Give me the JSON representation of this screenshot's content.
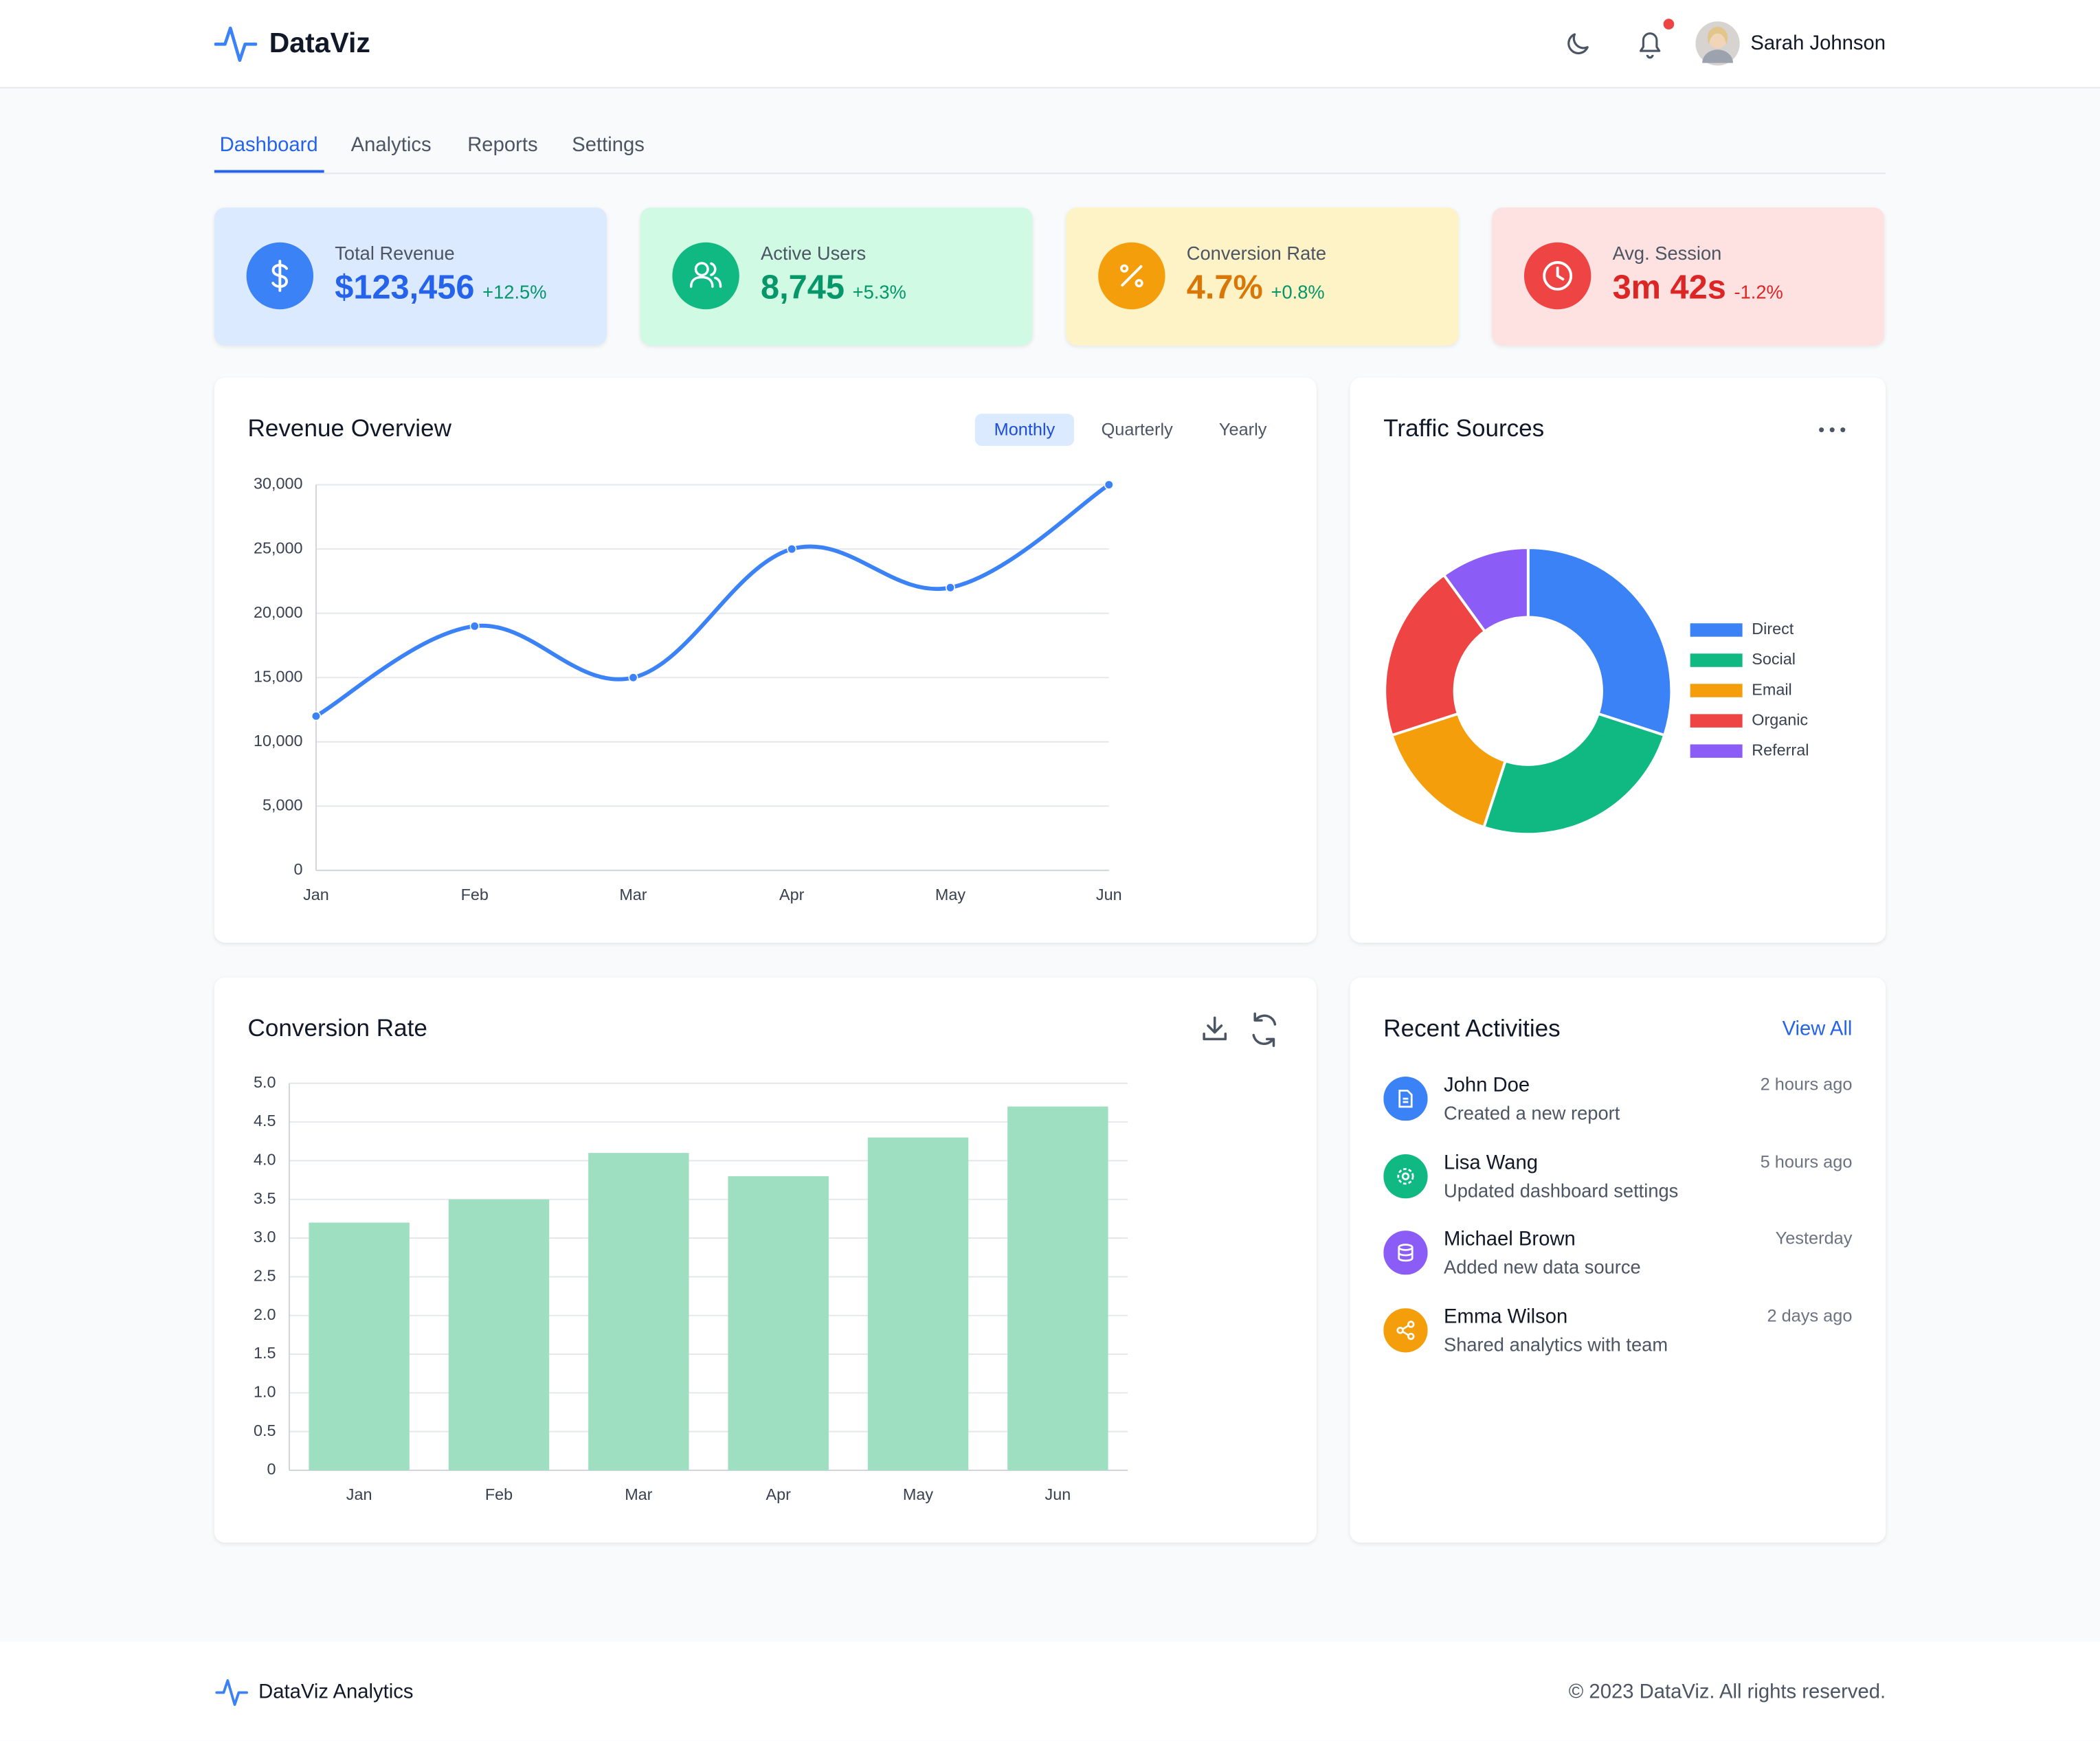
{
  "header": {
    "brand": "DataViz",
    "user": "Sarah Johnson"
  },
  "tabs": [
    "Dashboard",
    "Analytics",
    "Reports",
    "Settings"
  ],
  "stats": [
    {
      "label": "Total Revenue",
      "value": "$123,456",
      "change": "+12.5%"
    },
    {
      "label": "Active Users",
      "value": "8,745",
      "change": "+5.3%"
    },
    {
      "label": "Conversion Rate",
      "value": "4.7%",
      "change": "+0.8%"
    },
    {
      "label": "Avg. Session",
      "value": "3m 42s",
      "change": "-1.2%"
    }
  ],
  "chart_data": [
    {
      "type": "line",
      "title": "Revenue Overview",
      "periods": [
        "Monthly",
        "Quarterly",
        "Yearly"
      ],
      "categories": [
        "Jan",
        "Feb",
        "Mar",
        "Apr",
        "May",
        "Jun"
      ],
      "values": [
        12000,
        19000,
        15000,
        25000,
        22000,
        30000
      ],
      "color": "#3b82f6",
      "ylim": [
        0,
        30000
      ],
      "yticks": [
        0,
        {
          "value": 5000,
          "label": "5,000"
        },
        {
          "value": 10000,
          "label": "10,000"
        },
        {
          "value": 15000,
          "label": "15,000"
        },
        {
          "value": 20000,
          "label": "20,000"
        },
        {
          "value": 25000,
          "label": "25,000"
        },
        {
          "value": 30000,
          "label": "30,000"
        }
      ],
      "grid": true
    },
    {
      "type": "pie",
      "title": "Traffic Sources",
      "categories": [
        "Direct",
        "Social",
        "Email",
        "Organic",
        "Referral"
      ],
      "values": [
        30,
        25,
        15,
        20,
        10
      ],
      "colors": [
        "#3b82f6",
        "#10b981",
        "#f59e0b",
        "#ef4444",
        "#8b5cf6"
      ],
      "legend": "right"
    },
    {
      "type": "bar",
      "title": "Conversion Rate",
      "categories": [
        "Jan",
        "Feb",
        "Mar",
        "Apr",
        "May",
        "Jun"
      ],
      "values": [
        3.2,
        3.5,
        4.1,
        3.8,
        4.3,
        4.7
      ],
      "color": "#9fdfc1",
      "ylim": [
        0,
        5
      ],
      "yticks": [
        0,
        0.5,
        {
          "value": 1,
          "label": "1.0"
        },
        1.5,
        {
          "value": 2,
          "label": "2.0"
        },
        2.5,
        {
          "value": 3,
          "label": "3.0"
        },
        3.5,
        {
          "value": 4,
          "label": "4.0"
        },
        4.5,
        {
          "value": 5,
          "label": "5.0"
        }
      ],
      "grid": true
    }
  ],
  "activities": {
    "title": "Recent Activities",
    "link": "View All",
    "items": [
      {
        "name": "John Doe",
        "action": "Created a new report",
        "time": "2 hours ago"
      },
      {
        "name": "Lisa Wang",
        "action": "Updated dashboard settings",
        "time": "5 hours ago"
      },
      {
        "name": "Michael Brown",
        "action": "Added new data source",
        "time": "Yesterday"
      },
      {
        "name": "Emma Wilson",
        "action": "Shared analytics with team",
        "time": "2 days ago"
      }
    ]
  },
  "footer": {
    "brand": "DataViz Analytics",
    "copyright": "© 2023 DataViz. All rights reserved."
  }
}
